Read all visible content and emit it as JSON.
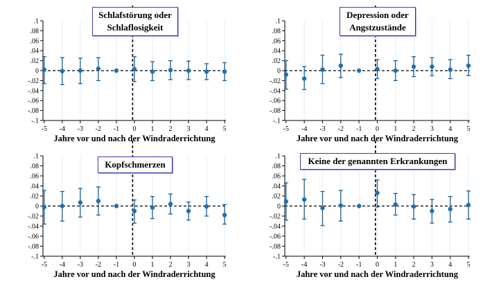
{
  "colors": {
    "marker": "#1f6fb2",
    "errorbar": "#1f5a8e",
    "grid": "#e3ecf3",
    "axis": "#000000"
  },
  "chart_data": [
    {
      "type": "scatter",
      "title": "Schlafstörung oder Schlaflosigkeit",
      "title_lines": [
        "Schlafstörung oder",
        "Schlaflosigkeit"
      ],
      "xlabel": "Jahre vor und nach der Windraderrichtung",
      "ylabel": "",
      "x": [
        -5,
        -4,
        -3,
        -2,
        -1,
        0,
        1,
        2,
        3,
        4,
        5
      ],
      "y": [
        0.002,
        -0.001,
        0.0,
        0.004,
        0.0,
        0.003,
        -0.002,
        0.001,
        0.0,
        -0.002,
        -0.002
      ],
      "ci_low": [
        -0.026,
        -0.028,
        -0.026,
        -0.02,
        0.0,
        -0.022,
        -0.02,
        -0.018,
        -0.018,
        -0.018,
        -0.02
      ],
      "ci_high": [
        0.028,
        0.026,
        0.025,
        0.026,
        0.0,
        0.028,
        0.018,
        0.02,
        0.019,
        0.014,
        0.016
      ],
      "xticks": [
        "-5",
        "-4",
        "-3",
        "-2",
        "-1",
        "0",
        "1",
        "2",
        "3",
        "4",
        "5"
      ],
      "yticks": [
        ".1",
        ".08",
        ".06",
        ".04",
        ".02",
        "0",
        "-.02",
        "-.04",
        "-.06",
        "-.08",
        "-.1"
      ],
      "ylim": [
        -0.1,
        0.1
      ],
      "reference_line_x": -0.1,
      "grid": true
    },
    {
      "type": "scatter",
      "title": "Depression oder Angstzustände",
      "title_lines": [
        "Depression oder",
        "Angstzustände"
      ],
      "xlabel": "Jahre vor und nach der Windraderrichtung",
      "ylabel": "",
      "x": [
        -5,
        -4,
        -3,
        -2,
        -1,
        0,
        1,
        2,
        3,
        4,
        5
      ],
      "y": [
        -0.008,
        -0.016,
        0.002,
        0.01,
        0.0,
        0.003,
        0.0,
        0.008,
        0.008,
        0.002,
        0.01
      ],
      "ci_low": [
        -0.037,
        -0.038,
        -0.026,
        -0.014,
        0.0,
        -0.016,
        -0.02,
        -0.012,
        -0.01,
        -0.016,
        -0.01
      ],
      "ci_high": [
        0.02,
        0.008,
        0.031,
        0.033,
        0.0,
        0.022,
        0.02,
        0.028,
        0.026,
        0.022,
        0.031
      ],
      "xticks": [
        "-5",
        "-4",
        "-3",
        "-2",
        "-1",
        "0",
        "1",
        "2",
        "3",
        "4",
        "5"
      ],
      "yticks": [
        ".1",
        ".08",
        ".06",
        ".04",
        ".02",
        "0",
        "-.02",
        "-.04",
        "-.06",
        "-.08",
        "-.1"
      ],
      "ylim": [
        -0.1,
        0.1
      ],
      "reference_line_x": -0.1,
      "grid": true
    },
    {
      "type": "scatter",
      "title": "Kopfschmerzen",
      "title_lines": [
        "Kopfschmerzen"
      ],
      "xlabel": "Jahre vor und nach der Windraderrichtung",
      "ylabel": "",
      "x": [
        -5,
        -4,
        -3,
        -2,
        -1,
        0,
        1,
        2,
        3,
        4,
        5
      ],
      "y": [
        -0.002,
        0.0,
        0.007,
        0.01,
        0.0,
        -0.01,
        -0.003,
        0.004,
        -0.01,
        -0.001,
        -0.018
      ],
      "ci_low": [
        -0.036,
        -0.03,
        -0.022,
        -0.018,
        0.0,
        -0.034,
        -0.025,
        -0.016,
        -0.028,
        -0.02,
        -0.036
      ],
      "ci_high": [
        0.031,
        0.029,
        0.035,
        0.038,
        0.0,
        0.012,
        0.019,
        0.024,
        0.008,
        0.019,
        0.003
      ],
      "xticks": [
        "-5",
        "-4",
        "-3",
        "-2",
        "-1",
        "0",
        "1",
        "2",
        "3",
        "4",
        "5"
      ],
      "yticks": [
        ".1",
        ".08",
        ".06",
        ".04",
        ".02",
        "0",
        "-.02",
        "-.04",
        "-.06",
        "-.08",
        "-.1"
      ],
      "ylim": [
        -0.1,
        0.1
      ],
      "reference_line_x": -0.1,
      "grid": true
    },
    {
      "type": "scatter",
      "title": "Keine der genannten Erkrankungen",
      "title_lines": [
        "Keine der genannten Erkrankungen"
      ],
      "xlabel": "Jahre vor und nach der Windraderrichtung",
      "ylabel": "",
      "x": [
        -5,
        -4,
        -3,
        -2,
        -1,
        0,
        1,
        2,
        3,
        4,
        5
      ],
      "y": [
        0.009,
        0.013,
        -0.004,
        0.001,
        0.0,
        0.026,
        0.003,
        -0.001,
        -0.01,
        -0.006,
        0.002
      ],
      "ci_low": [
        -0.028,
        -0.026,
        -0.039,
        -0.03,
        0.0,
        -0.002,
        -0.018,
        -0.026,
        -0.034,
        -0.032,
        -0.026
      ],
      "ci_high": [
        0.046,
        0.053,
        0.029,
        0.031,
        0.0,
        0.052,
        0.025,
        0.023,
        0.013,
        0.019,
        0.03
      ],
      "xticks": [
        "-5",
        "-4",
        "-3",
        "-2",
        "-1",
        "0",
        "1",
        "2",
        "3",
        "4",
        "5"
      ],
      "yticks": [
        ".1",
        ".08",
        ".06",
        ".04",
        ".02",
        "0",
        "-.02",
        "-.04",
        "-.06",
        "-.08",
        "-.1"
      ],
      "ylim": [
        -0.1,
        0.1
      ],
      "reference_line_x": -0.1,
      "grid": true
    }
  ]
}
